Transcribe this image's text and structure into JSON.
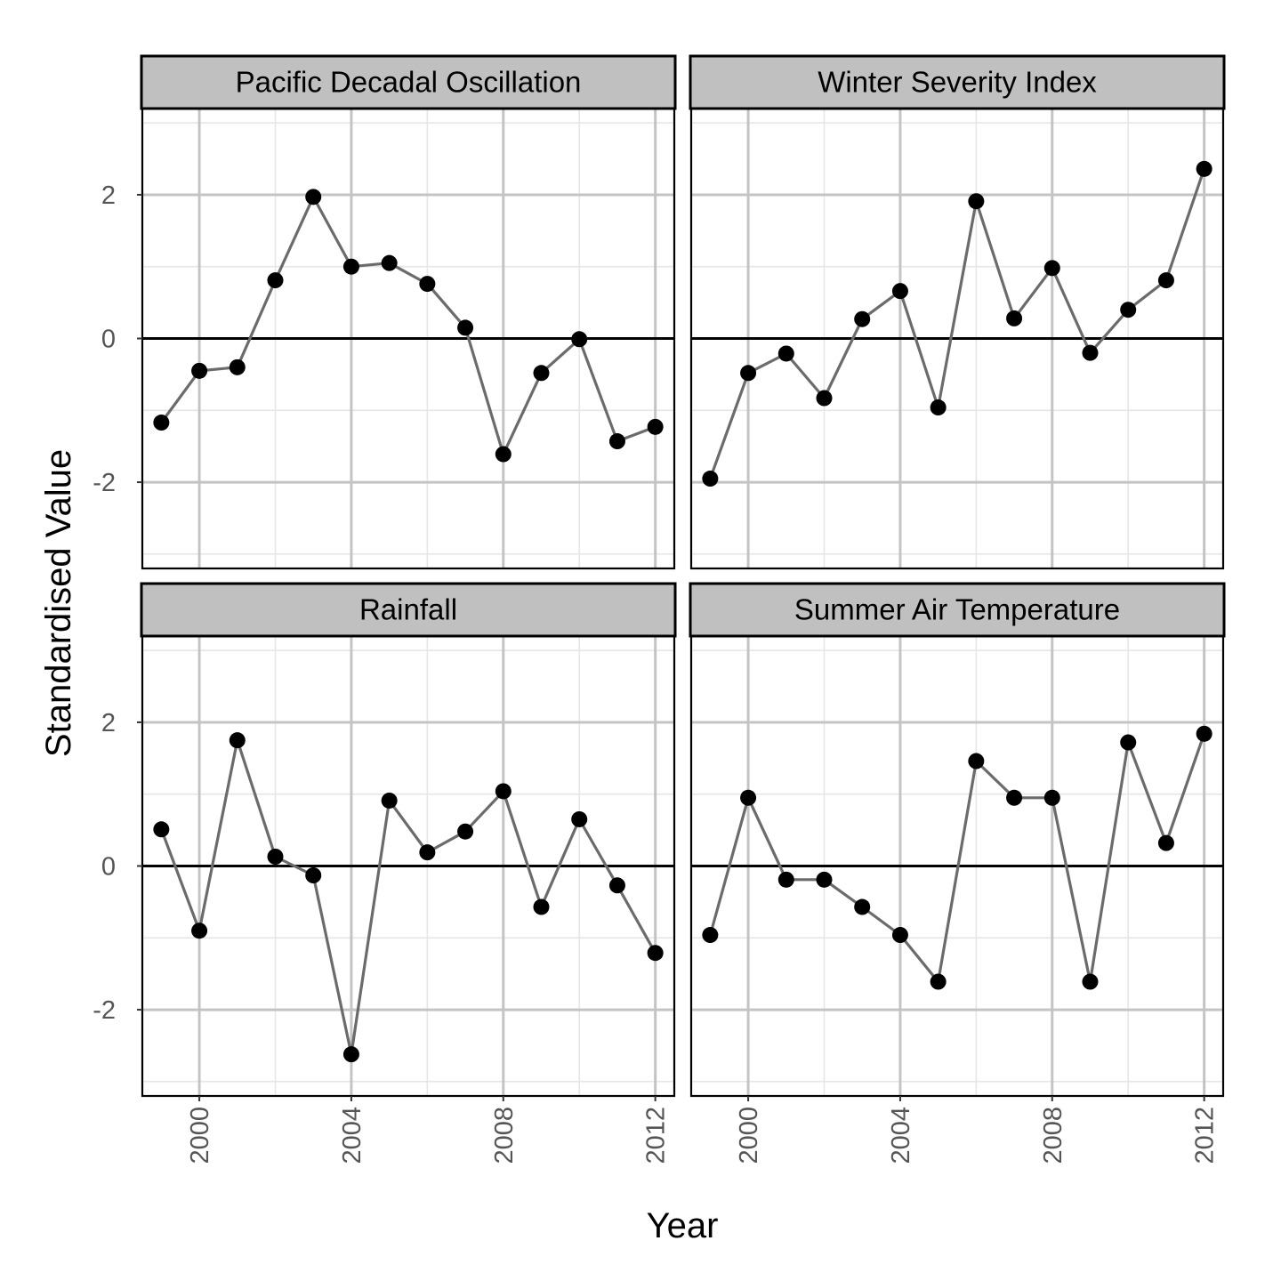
{
  "chart_data": {
    "type": "line",
    "layout": "facet-grid-2x2",
    "xlabel": "Year",
    "ylabel": "Standardised Value",
    "xlim": [
      1998.5,
      2012.5
    ],
    "ylim": [
      -3.2,
      3.2
    ],
    "x_ticks": [
      2000,
      2004,
      2008,
      2012
    ],
    "x_tick_labels": [
      "2000",
      "2004",
      "2008",
      "2012"
    ],
    "y_ticks": [
      -2,
      0,
      2
    ],
    "y_tick_labels": [
      "-2",
      "0",
      "2"
    ],
    "reference_line": 0,
    "grid": true,
    "line_color": "#6b6b6b",
    "point_color": "#000000",
    "strip_fill": "#c0c0c0",
    "x": [
      1999,
      2000,
      2001,
      2002,
      2003,
      2004,
      2005,
      2006,
      2007,
      2008,
      2009,
      2010,
      2011,
      2012
    ],
    "panels": [
      {
        "title": "Pacific Decadal Oscillation",
        "values": [
          -1.17,
          -0.45,
          -0.4,
          0.81,
          1.97,
          1.0,
          1.05,
          0.76,
          0.15,
          -1.61,
          -0.48,
          -0.01,
          -1.43,
          -1.23
        ]
      },
      {
        "title": "Winter Severity Index",
        "values": [
          -1.95,
          -0.48,
          -0.21,
          -0.83,
          0.27,
          0.66,
          -0.96,
          1.91,
          0.28,
          0.98,
          -0.2,
          0.4,
          0.81,
          2.36
        ]
      },
      {
        "title": "Rainfall",
        "values": [
          0.51,
          -0.9,
          1.75,
          0.13,
          -0.13,
          -2.62,
          0.91,
          0.19,
          0.48,
          1.04,
          -0.57,
          0.65,
          -0.27,
          -1.21
        ]
      },
      {
        "title": "Summer Air Temperature",
        "values": [
          -0.96,
          0.95,
          -0.19,
          -0.19,
          -0.57,
          -0.96,
          -1.61,
          1.46,
          0.95,
          0.95,
          -1.61,
          1.72,
          0.32,
          1.84
        ]
      }
    ]
  }
}
